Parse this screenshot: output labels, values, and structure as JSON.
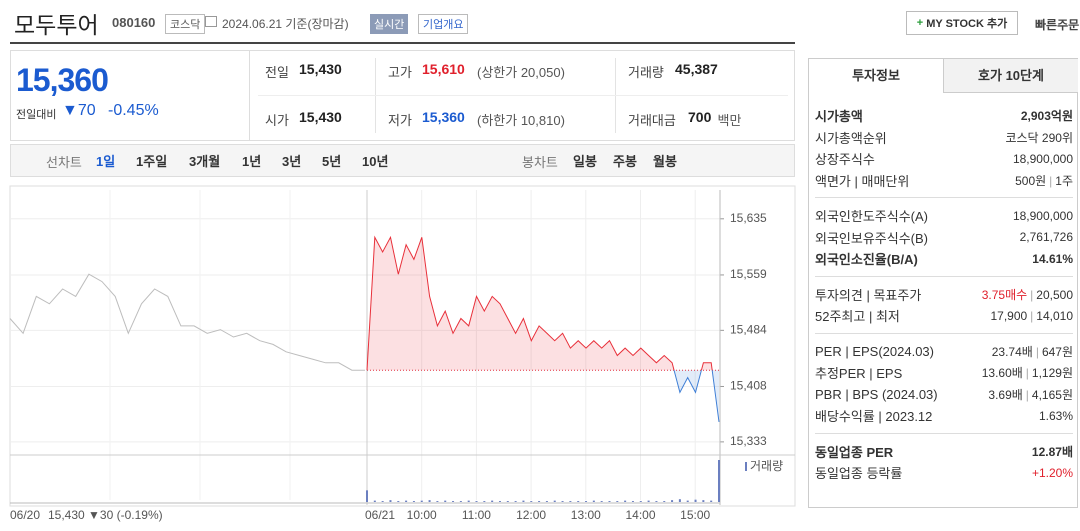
{
  "header": {
    "name": "모두투어",
    "code": "080160",
    "market": "코스닥",
    "date": "2024.06.21 기준(장마감)",
    "realtime": "실시간",
    "overview": "기업개요",
    "mystock": "MY STOCK 추가",
    "quick_order": "빠른주문"
  },
  "price": {
    "current": "15,360",
    "change_label": "전일대비",
    "change": "▼70",
    "change_rate": "-0.45%"
  },
  "stats": [
    {
      "label": "전일",
      "value": "15,430"
    },
    {
      "label": "고가",
      "value": "15,610",
      "note": "(상한가 20,050)",
      "color": "#e0202c"
    },
    {
      "label": "거래량",
      "value": "45,387"
    },
    {
      "label": "시가",
      "value": "15,430"
    },
    {
      "label": "저가",
      "value": "15,360",
      "note": "(하한가 10,810)",
      "color": "#1b5bd0"
    },
    {
      "label": "거래대금",
      "value": "700",
      "note": "백만"
    }
  ],
  "tabs": {
    "line_label": "선차트",
    "line": [
      "1일",
      "1주일",
      "3개월",
      "1년",
      "3년",
      "5년",
      "10년"
    ],
    "candle_label": "봉차트",
    "candle": [
      "일봉",
      "주봉",
      "월봉"
    ]
  },
  "chart_data": {
    "type": "line",
    "ylim": [
      15322,
      15674
    ],
    "yticks": [
      {
        "value": 15635,
        "label": "15,635"
      },
      {
        "value": 15559,
        "label": "15,559"
      },
      {
        "value": 15484,
        "label": "15,484"
      },
      {
        "value": 15408,
        "label": "15,408"
      },
      {
        "value": 15333,
        "label": "15,333"
      }
    ],
    "reference": 15430,
    "prev_summary": "15,430 ▼30 (-0.19%)",
    "xticks": [
      "10:00",
      "11:00",
      "12:00",
      "13:00",
      "14:00",
      "15:00"
    ],
    "grid": true,
    "series": [
      {
        "name": "06/20",
        "color": "#bdbdbd",
        "values": [
          15500,
          15480,
          15530,
          15520,
          15540,
          15530,
          15560,
          15550,
          15530,
          15480,
          15520,
          15540,
          15530,
          15490,
          15490,
          15480,
          15485,
          15475,
          15480,
          15470,
          15465,
          15455,
          15450,
          15445,
          15440,
          15440,
          15430,
          15430
        ]
      },
      {
        "name": "06/21",
        "color": "#e8303a",
        "below_color": "#3f7fd6",
        "values": [
          15430,
          15610,
          15590,
          15610,
          15560,
          15600,
          15580,
          15610,
          15530,
          15490,
          15510,
          15480,
          15500,
          15490,
          15530,
          15510,
          15530,
          15520,
          15500,
          15480,
          15500,
          15470,
          15490,
          15480,
          15470,
          15480,
          15460,
          15470,
          15460,
          15470,
          15460,
          15470,
          15450,
          15460,
          15450,
          15460,
          15450,
          15440,
          15450,
          15440,
          15400,
          15420,
          15400,
          15440,
          15440,
          15360
        ]
      }
    ],
    "volume": {
      "label": "거래량",
      "color": "#6b7fc0",
      "values": [
        2500,
        300,
        200,
        400,
        200,
        300,
        200,
        300,
        400,
        200,
        300,
        200,
        200,
        300,
        200,
        200,
        300,
        200,
        200,
        200,
        300,
        200,
        200,
        200,
        300,
        200,
        200,
        200,
        200,
        300,
        200,
        200,
        200,
        300,
        200,
        200,
        300,
        200,
        200,
        400,
        600,
        300,
        500,
        400,
        300,
        9000
      ]
    }
  },
  "info": {
    "tabs": [
      "투자정보",
      "호가 10단계"
    ],
    "separator": "|",
    "groups": [
      [
        {
          "label": "시가총액",
          "value": [
            "2,903억원"
          ],
          "bold": true
        },
        {
          "label": "시가총액순위",
          "value": [
            "코스닥 290위"
          ]
        },
        {
          "label": "상장주식수",
          "value": [
            "18,900,000"
          ]
        },
        {
          "label": "액면가 | 매매단위",
          "value": [
            "500원",
            "1주"
          ]
        }
      ],
      [
        {
          "label": "외국인한도주식수(A)",
          "value": [
            "18,900,000"
          ]
        },
        {
          "label": "외국인보유주식수(B)",
          "value": [
            "2,761,726"
          ]
        },
        {
          "label": "외국인소진율(B/A)",
          "value": [
            "14.61%"
          ],
          "bold": true
        }
      ],
      [
        {
          "label": "투자의견 | 목표주가",
          "value": [
            "3.75매수",
            "20,500"
          ],
          "color": "#e0202c"
        },
        {
          "label": "52주최고 | 최저",
          "value": [
            "17,900",
            "14,010"
          ]
        }
      ],
      [
        {
          "label": "PER | EPS(2024.03)",
          "value": [
            "23.74배",
            "647원"
          ]
        },
        {
          "label": "추정PER | EPS",
          "value": [
            "13.60배",
            "1,129원"
          ]
        },
        {
          "label": "PBR | BPS (2024.03)",
          "value": [
            "3.69배",
            "4,165원"
          ]
        },
        {
          "label": "배당수익률 | 2023.12",
          "value": [
            "1.63%"
          ]
        }
      ],
      [
        {
          "label": "동일업종 PER",
          "value": [
            "12.87배"
          ],
          "bold": true
        },
        {
          "label": "동일업종 등락률",
          "value": [
            "+1.20%"
          ],
          "color": "#e0202c"
        }
      ]
    ]
  }
}
